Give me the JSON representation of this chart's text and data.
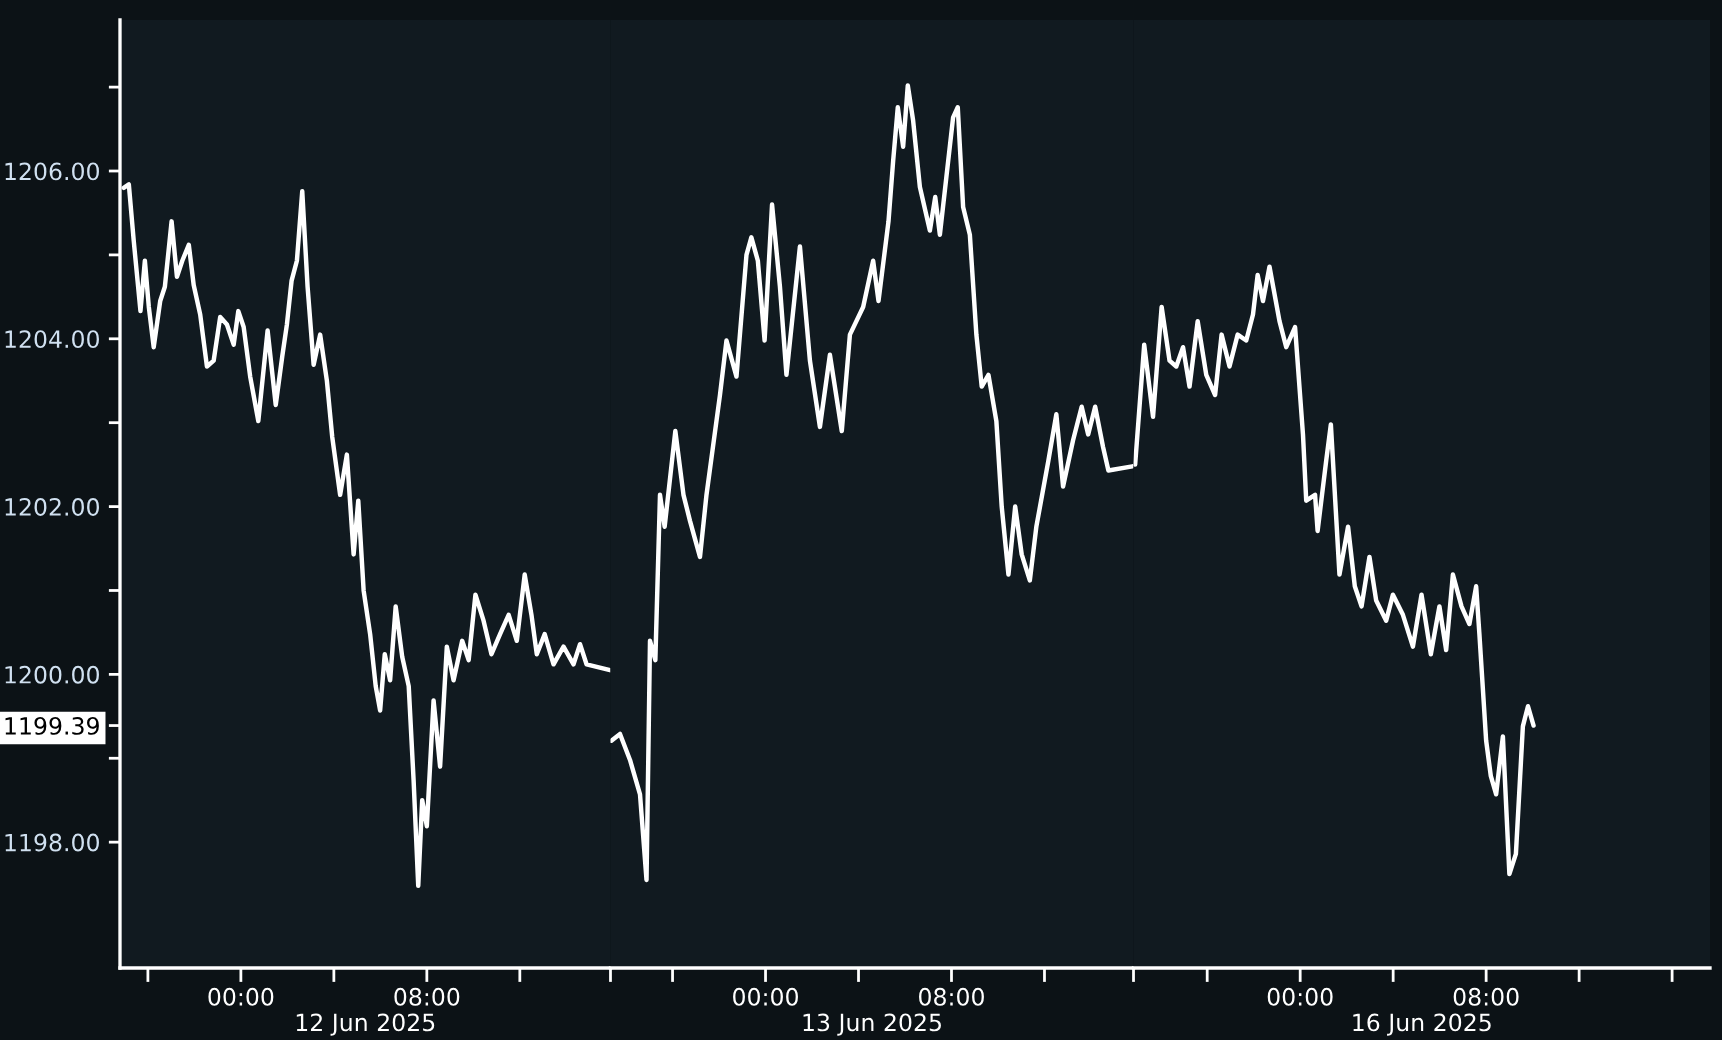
{
  "chart_data": [
    {
      "type": "line",
      "xlabel": "12 Jun 2025",
      "x": [
        -5.04,
        -4.82,
        -4.61,
        -4.32,
        -4.13,
        -3.96,
        -3.75,
        -3.47,
        -3.27,
        -2.98,
        -2.75,
        -2.52,
        -2.24,
        -2.03,
        -1.75,
        -1.46,
        -1.17,
        -0.89,
        -0.6,
        -0.31,
        -0.11,
        0.12,
        0.4,
        0.75,
        1.15,
        1.5,
        1.78,
        1.98,
        2.18,
        2.41,
        2.64,
        2.87,
        3.13,
        3.41,
        3.7,
        3.93,
        4.27,
        4.56,
        4.85,
        5.05,
        5.28,
        5.56,
        5.8,
        5.99,
        6.19,
        6.42,
        6.66,
        6.94,
        7.22,
        7.43,
        7.63,
        7.8,
        8.0,
        8.29,
        8.57,
        8.86,
        9.15,
        9.52,
        9.8,
        10.09,
        10.44,
        10.78,
        11.15,
        11.52,
        11.87,
        12.21,
        12.5,
        12.73,
        13.07,
        13.45,
        13.88,
        14.31,
        14.59,
        14.87,
        15.88
      ],
      "series": [
        {
          "color": "#ffffff",
          "values": [
            1205.8,
            1205.84,
            1205.17,
            1204.33,
            1204.93,
            1204.38,
            1203.9,
            1204.45,
            1204.62,
            1205.4,
            1204.74,
            1204.93,
            1205.12,
            1204.64,
            1204.29,
            1203.67,
            1203.74,
            1204.26,
            1204.17,
            1203.93,
            1204.33,
            1204.14,
            1203.55,
            1203.02,
            1204.1,
            1203.21,
            1203.79,
            1204.17,
            1204.69,
            1204.93,
            1205.76,
            1204.62,
            1203.69,
            1204.05,
            1203.5,
            1202.83,
            1202.14,
            1202.62,
            1201.43,
            1202.07,
            1201.0,
            1200.48,
            1199.86,
            1199.57,
            1200.24,
            1199.93,
            1200.81,
            1200.21,
            1199.86,
            1198.74,
            1197.48,
            1198.5,
            1198.19,
            1199.69,
            1198.9,
            1200.33,
            1199.93,
            1200.4,
            1200.17,
            1200.95,
            1200.64,
            1200.24,
            1200.48,
            1200.71,
            1200.4,
            1201.19,
            1200.71,
            1200.24,
            1200.48,
            1200.12,
            1200.33,
            1200.12,
            1200.36,
            1200.12,
            1200.05
          ]
        }
      ],
      "xlim": [
        -5.2,
        15.9
      ],
      "xticks": [
        {
          "value": -4,
          "label": null
        },
        {
          "value": 0,
          "label": "00:00"
        },
        {
          "value": 4,
          "label": null
        },
        {
          "value": 8,
          "label": "08:00"
        },
        {
          "value": 12,
          "label": null
        }
      ],
      "ylim": [
        1196.5,
        1207.8
      ],
      "yticks": [
        {
          "value": 1198,
          "label": "1198.00"
        },
        {
          "value": 1199,
          "label": null
        },
        {
          "value": 1199.39,
          "label": "1199.39"
        },
        {
          "value": 1200,
          "label": "1200.00"
        },
        {
          "value": 1201,
          "label": null
        },
        {
          "value": 1202,
          "label": "1202.00"
        },
        {
          "value": 1203,
          "label": null
        },
        {
          "value": 1204,
          "label": "1204.00"
        },
        {
          "value": 1205,
          "label": null
        },
        {
          "value": 1206,
          "label": "1206.00"
        },
        {
          "value": 1207,
          "label": null
        }
      ]
    },
    {
      "type": "line",
      "xlabel": "13 Jun 2025",
      "x": [
        -6.63,
        -6.26,
        -5.83,
        -5.4,
        -5.12,
        -4.97,
        -4.74,
        -4.54,
        -4.34,
        -3.88,
        -3.53,
        -3.25,
        -2.82,
        -2.54,
        -1.96,
        -1.68,
        -1.25,
        -0.82,
        -0.61,
        -0.33,
        -0.04,
        0.28,
        0.62,
        0.9,
        1.48,
        1.91,
        2.34,
        2.77,
        3.28,
        3.63,
        4.2,
        4.63,
        4.86,
        5.29,
        5.49,
        5.69,
        5.92,
        6.12,
        6.35,
        6.64,
        7.07,
        7.3,
        7.5,
        7.78,
        8.07,
        8.27,
        8.5,
        8.79,
        9.07,
        9.3,
        9.59,
        9.93,
        10.16,
        10.45,
        10.74,
        11.02,
        11.37,
        11.65,
        12.17,
        12.51,
        12.8,
        13.23,
        13.6,
        13.88,
        14.18,
        14.52,
        14.75,
        15.78
      ],
      "series": [
        {
          "color": "#ffffff",
          "values": [
            1199.21,
            1199.29,
            1198.98,
            1198.57,
            1197.55,
            1200.4,
            1200.17,
            1202.14,
            1201.76,
            1202.9,
            1202.14,
            1201.83,
            1201.4,
            1202.14,
            1203.33,
            1203.98,
            1203.55,
            1205.0,
            1205.21,
            1204.93,
            1203.98,
            1205.6,
            1204.62,
            1203.57,
            1205.1,
            1203.74,
            1202.95,
            1203.81,
            1202.9,
            1204.05,
            1204.38,
            1204.93,
            1204.45,
            1205.4,
            1206.12,
            1206.76,
            1206.29,
            1207.02,
            1206.6,
            1205.81,
            1205.29,
            1205.69,
            1205.24,
            1205.93,
            1206.64,
            1206.76,
            1205.57,
            1205.24,
            1204.05,
            1203.43,
            1203.57,
            1203.02,
            1202.0,
            1201.19,
            1202.0,
            1201.43,
            1201.12,
            1201.76,
            1202.55,
            1203.1,
            1202.24,
            1202.79,
            1203.19,
            1202.86,
            1203.19,
            1202.71,
            1202.43,
            1202.48
          ]
        }
      ],
      "xlim": [
        -6.67,
        15.83
      ],
      "xticks": [
        {
          "value": -6.67,
          "label": null
        },
        {
          "value": -4,
          "label": null
        },
        {
          "value": 0,
          "label": "00:00"
        },
        {
          "value": 4,
          "label": null
        },
        {
          "value": 8,
          "label": "08:00"
        },
        {
          "value": 12,
          "label": null
        }
      ],
      "ylim": [
        1196.5,
        1207.8
      ],
      "tick_labels": "x"
    },
    {
      "type": "line",
      "xlabel": "16 Jun 2025",
      "x": [
        -7.1,
        -6.71,
        -6.33,
        -5.96,
        -5.62,
        -5.33,
        -5.04,
        -4.76,
        -4.41,
        -4.04,
        -3.66,
        -3.38,
        -3.04,
        -2.69,
        -2.32,
        -2.03,
        -1.83,
        -1.6,
        -1.32,
        -0.89,
        -0.6,
        -0.22,
        0.12,
        0.26,
        0.64,
        0.75,
        1.12,
        1.32,
        1.69,
        2.06,
        2.35,
        2.64,
        2.98,
        3.27,
        3.7,
        3.99,
        4.42,
        4.85,
        5.22,
        5.62,
        5.99,
        6.28,
        6.57,
        6.94,
        7.28,
        7.57,
        7.71,
        8.0,
        8.2,
        8.43,
        8.72,
        9.0,
        9.28,
        9.58,
        9.8,
        10.04
      ],
      "series": [
        {
          "color": "#ffffff",
          "values": [
            1202.5,
            1203.93,
            1203.07,
            1204.38,
            1203.74,
            1203.67,
            1203.9,
            1203.43,
            1204.21,
            1203.57,
            1203.33,
            1204.05,
            1203.67,
            1204.05,
            1203.98,
            1204.29,
            1204.76,
            1204.45,
            1204.86,
            1204.21,
            1203.9,
            1204.14,
            1202.86,
            1202.07,
            1202.14,
            1201.71,
            1202.55,
            1202.98,
            1201.19,
            1201.76,
            1201.05,
            1200.81,
            1201.4,
            1200.88,
            1200.64,
            1200.95,
            1200.71,
            1200.33,
            1200.95,
            1200.24,
            1200.81,
            1200.29,
            1201.19,
            1200.81,
            1200.6,
            1201.05,
            1200.48,
            1199.21,
            1198.79,
            1198.57,
            1199.26,
            1197.62,
            1197.86,
            1199.38,
            1199.62,
            1199.39
          ]
        }
      ],
      "xlim": [
        -7.17,
        17.63
      ],
      "xticks": [
        {
          "value": -7.17,
          "label": null
        },
        {
          "value": -4,
          "label": null
        },
        {
          "value": 0,
          "label": "00:00"
        },
        {
          "value": 4,
          "label": null
        },
        {
          "value": 8,
          "label": "08:00"
        },
        {
          "value": 12,
          "label": null
        },
        {
          "value": 16,
          "label": null
        }
      ],
      "ylim": [
        1196.5,
        1207.8
      ],
      "tick_labels": "x"
    }
  ]
}
